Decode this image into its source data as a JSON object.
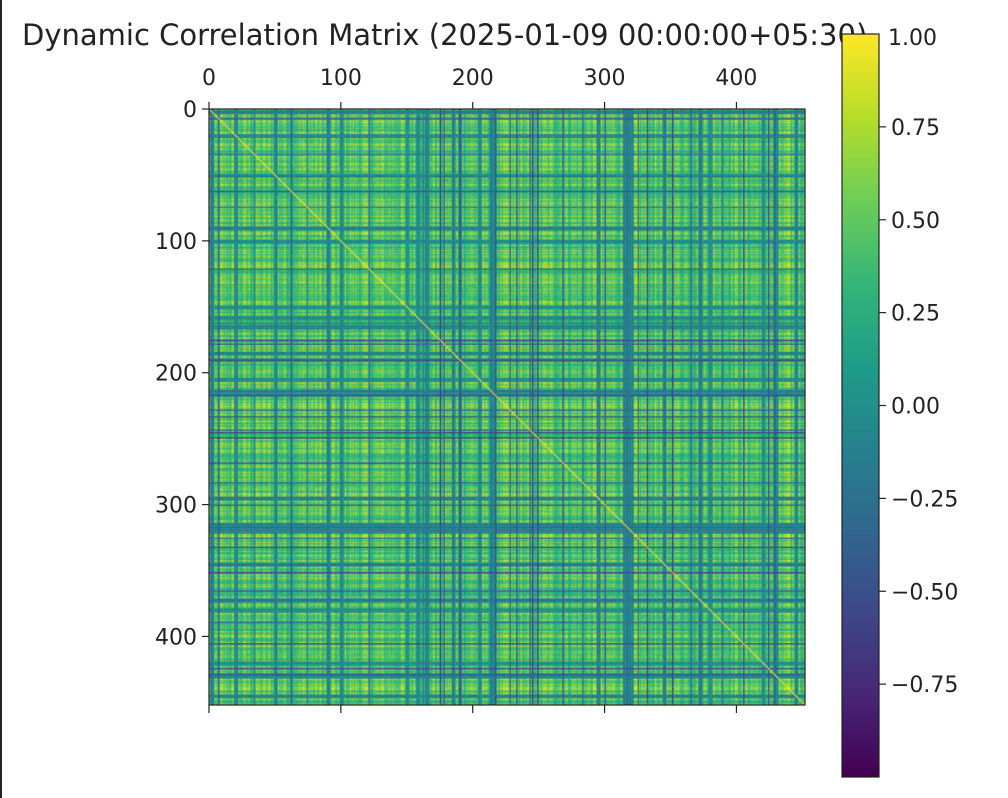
{
  "chart_data": {
    "type": "heatmap",
    "title": "Dynamic Correlation Matrix (2025-01-09 00:00:00+05:30)",
    "xlabel": "",
    "ylabel": "",
    "n": 452,
    "xlim": [
      0,
      452
    ],
    "ylim": [
      0,
      452
    ],
    "x_ticks": [
      0,
      100,
      200,
      300,
      400
    ],
    "y_ticks": [
      0,
      100,
      200,
      300,
      400
    ],
    "x_tick_labels": [
      "0",
      "100",
      "200",
      "300",
      "400"
    ],
    "y_tick_labels": [
      "0",
      "100",
      "200",
      "300",
      "400"
    ],
    "x_axis_position": "top",
    "colormap": "viridis",
    "clim": [
      -1.0,
      1.0
    ],
    "colorbar": {
      "position": "right",
      "ticks": [
        0.75,
        0.5,
        0.25,
        0.0,
        -0.25,
        -0.5,
        -0.75
      ],
      "tick_labels": [
        "0.75",
        "0.50",
        "0.25",
        "0.00",
        "−0.25",
        "−0.50",
        "−0.75"
      ],
      "top_label": "1.00"
    },
    "diagonal_value": 1.0,
    "dominant_range": [
      0.25,
      0.9
    ],
    "low_correlation_bands": [
      2,
      20,
      50,
      90,
      100,
      150,
      158,
      165,
      185,
      190,
      205,
      215,
      295,
      315,
      318,
      320,
      345,
      372,
      380,
      420,
      430,
      445
    ]
  },
  "colors": {
    "viridis_stops": [
      "#440154",
      "#482878",
      "#3e4989",
      "#31688e",
      "#26828e",
      "#1f9e89",
      "#35b779",
      "#6ece58",
      "#b5de2b",
      "#fde725"
    ],
    "axis": "#222222",
    "background": "#ffffff"
  }
}
